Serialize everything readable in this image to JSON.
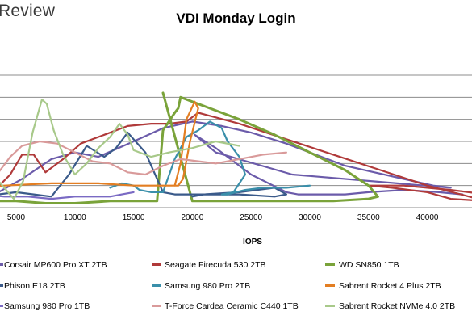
{
  "brand": "Review",
  "chart_data": {
    "type": "line",
    "title": "VDI Monday Login",
    "xlabel": "IOPS",
    "ylabel": "",
    "xlim": [
      0,
      45000
    ],
    "ylim": [
      0,
      6
    ],
    "x_ticks": [
      "5000",
      "10000",
      "15000",
      "20000",
      "25000",
      "30000",
      "35000",
      "40000"
    ],
    "grid": "horizontal",
    "legend_position": "bottom",
    "series": [
      {
        "name": "Corsair MP600 Pro XT 2TB",
        "color": "#6B5BAA",
        "x": [
          0,
          3500,
          5500,
          8000,
          10000,
          12000,
          15000,
          17500,
          20000,
          22500,
          25000,
          28000,
          30500,
          33000,
          35500,
          38000,
          40500,
          42000,
          28500,
          22000,
          20200,
          22000,
          25000,
          28000,
          29000,
          30500,
          33000,
          35000,
          38000,
          41000,
          43000
        ],
        "y": [
          0.6,
          0.7,
          1.3,
          2.2,
          2.5,
          2.3,
          3.0,
          3.6,
          3.9,
          3.7,
          3.4,
          2.9,
          2.4,
          1.9,
          1.6,
          1.3,
          1.0,
          0.9,
          1.5,
          2.5,
          3.3,
          2.7,
          1.5,
          0.7,
          0.6,
          0.6,
          0.6,
          0.7,
          0.8,
          0.7,
          0.6
        ]
      },
      {
        "name": "Seagate Firecuda 530 2TB",
        "color": "#B03A3A",
        "x": [
          0,
          3000,
          4500,
          5500,
          6500,
          7500,
          9000,
          10500,
          12500,
          14500,
          16500,
          18000,
          19500,
          20500,
          24000,
          28000,
          32000,
          36000,
          40000,
          45000,
          42000,
          40000,
          37000,
          35000,
          38000,
          42000,
          45000
        ],
        "y": [
          0.6,
          0.7,
          1.5,
          2.4,
          2.4,
          1.6,
          2.2,
          2.9,
          3.3,
          3.7,
          3.8,
          3.8,
          3.9,
          4.3,
          3.8,
          3.1,
          2.4,
          1.7,
          1.0,
          0.3,
          0.4,
          0.7,
          0.9,
          1.0,
          1.0,
          0.8,
          0.6
        ]
      },
      {
        "name": "WD SN850 1TB",
        "color": "#7AA33A",
        "x": [
          0,
          2000,
          5000,
          7500,
          10000,
          13000,
          15500,
          17000,
          17500,
          18500,
          18800,
          19000,
          21000,
          24000,
          27000,
          30000,
          33000,
          35000,
          35800,
          35000,
          32000,
          29000,
          26000,
          23000,
          20000,
          17500
        ],
        "y": [
          0.4,
          0.3,
          0.3,
          0.2,
          0.2,
          0.3,
          0.3,
          0.3,
          3.5,
          4.3,
          4.5,
          5.0,
          4.6,
          4.0,
          3.3,
          2.5,
          1.7,
          1.0,
          0.5,
          0.4,
          0.3,
          0.3,
          0.3,
          0.3,
          0.3,
          5.2
        ]
      },
      {
        "name": "Phison E18 2TB",
        "color": "#3A5A8A",
        "x": [
          0,
          1500,
          3500,
          5000,
          6500,
          8000,
          9500,
          11000,
          12500,
          13500,
          14500,
          16000,
          17500,
          18500,
          19500,
          21000,
          24000,
          27000,
          28000,
          27000,
          24000,
          21000,
          20000
        ],
        "y": [
          0.8,
          0.6,
          0.6,
          0.7,
          0.6,
          0.5,
          1.5,
          2.8,
          2.3,
          2.7,
          3.4,
          2.5,
          0.7,
          0.6,
          0.6,
          0.6,
          0.7,
          0.9,
          0.6,
          0.5,
          0.6,
          0.6,
          0.5
        ]
      },
      {
        "name": "Samsung 980 Pro 2TB",
        "color": "#3A8FAA",
        "x": [
          13000,
          14000,
          15000,
          15500,
          16500,
          17500,
          18500,
          19500,
          20500,
          21500,
          22500,
          23000,
          24000,
          24500,
          23500,
          22500,
          23000,
          24500,
          26000,
          28000,
          30000
        ],
        "y": [
          0.9,
          1.1,
          1.0,
          0.8,
          0.7,
          0.7,
          2.2,
          3.2,
          3.5,
          3.9,
          3.6,
          3.0,
          2.3,
          1.5,
          0.7,
          0.6,
          0.6,
          0.8,
          0.9,
          0.9,
          1.0
        ]
      },
      {
        "name": "Sabrent Rocket 4 Plus 2TB",
        "color": "#E37E22",
        "x": [
          0,
          4000,
          8000,
          12000,
          15000,
          17000,
          18000,
          18400,
          18800,
          19200,
          19800,
          20500,
          20200,
          19500,
          19000,
          18500
        ],
        "y": [
          0.8,
          1.0,
          1.1,
          1.1,
          1.0,
          1.0,
          1.0,
          1.0,
          1.0,
          1.3,
          3.0,
          4.5,
          4.8,
          4.0,
          2.0,
          1.0
        ]
      },
      {
        "name": "Samsung 980 Pro 1TB",
        "color": "#7A6AC4",
        "x": [
          0,
          2000,
          4000,
          6000,
          8000,
          10000,
          12000,
          13000,
          14000,
          15000
        ],
        "y": [
          0.6,
          0.6,
          0.5,
          0.5,
          0.4,
          0.5,
          0.5,
          0.5,
          0.6,
          0.7
        ]
      },
      {
        "name": "T-Force Cardea Ceramic C440 1TB",
        "color": "#D99A9A",
        "x": [
          0,
          2000,
          3500,
          4500,
          5500,
          7000,
          8500,
          10000,
          11500,
          13000,
          14500,
          16000,
          17500,
          19000,
          20500,
          22000,
          24000,
          26000,
          28000
        ],
        "y": [
          1.0,
          1.3,
          1.6,
          2.3,
          2.8,
          3.0,
          2.9,
          2.5,
          2.1,
          2.0,
          1.6,
          1.5,
          1.9,
          2.2,
          2.1,
          2.0,
          2.2,
          2.4,
          2.5
        ]
      },
      {
        "name": "Sabrent Rocket NVMe 4.0 2TB",
        "color": "#A8C98A",
        "x": [
          0,
          2000,
          3500,
          4800,
          5600,
          6400,
          7200,
          7600,
          8200,
          9000,
          10000,
          11000,
          12000,
          13000,
          13800,
          14500,
          15000,
          16500,
          18000,
          20000,
          22000,
          24000
        ],
        "y": [
          1.8,
          1.7,
          1.2,
          0.4,
          1.2,
          3.4,
          4.9,
          4.7,
          3.5,
          2.4,
          1.5,
          2.0,
          2.7,
          3.2,
          3.8,
          3.3,
          2.6,
          2.3,
          2.5,
          2.7,
          3.0,
          2.8
        ]
      }
    ]
  }
}
